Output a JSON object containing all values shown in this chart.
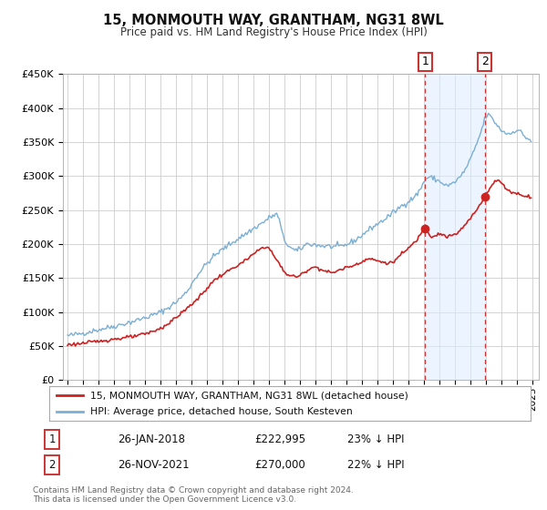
{
  "title": "15, MONMOUTH WAY, GRANTHAM, NG31 8WL",
  "subtitle": "Price paid vs. HM Land Registry's House Price Index (HPI)",
  "background_color": "#ffffff",
  "grid_color": "#cccccc",
  "hpi_color": "#7bafd4",
  "price_color": "#cc2222",
  "vline_color": "#cc3333",
  "shade_color": "#ddeeff",
  "ylim": [
    0,
    450000
  ],
  "yticks": [
    0,
    50000,
    100000,
    150000,
    200000,
    250000,
    300000,
    350000,
    400000,
    450000
  ],
  "ytick_labels": [
    "£0",
    "£50K",
    "£100K",
    "£150K",
    "£200K",
    "£250K",
    "£300K",
    "£350K",
    "£400K",
    "£450K"
  ],
  "xlim_start": 1994.7,
  "xlim_end": 2025.4,
  "xticks": [
    1995,
    1996,
    1997,
    1998,
    1999,
    2000,
    2001,
    2002,
    2003,
    2004,
    2005,
    2006,
    2007,
    2008,
    2009,
    2010,
    2011,
    2012,
    2013,
    2014,
    2015,
    2016,
    2017,
    2018,
    2019,
    2020,
    2021,
    2022,
    2023,
    2024,
    2025
  ],
  "sale1_x": 2018.07,
  "sale1_y": 222995,
  "sale1_label": "1",
  "sale1_date": "26-JAN-2018",
  "sale1_price": "£222,995",
  "sale1_hpi": "23% ↓ HPI",
  "sale2_x": 2021.91,
  "sale2_y": 270000,
  "sale2_label": "2",
  "sale2_date": "26-NOV-2021",
  "sale2_price": "£270,000",
  "sale2_hpi": "22% ↓ HPI",
  "legend_label1": "15, MONMOUTH WAY, GRANTHAM, NG31 8WL (detached house)",
  "legend_label2": "HPI: Average price, detached house, South Kesteven",
  "footer1": "Contains HM Land Registry data © Crown copyright and database right 2024.",
  "footer2": "This data is licensed under the Open Government Licence v3.0.",
  "hpi_anchors_x": [
    1995.0,
    1996.0,
    1997.0,
    1998.0,
    1999.5,
    2001.0,
    2002.5,
    2003.5,
    2004.5,
    2005.5,
    2006.5,
    2007.5,
    2008.5,
    2009.0,
    2009.8,
    2010.5,
    2011.5,
    2012.5,
    2013.5,
    2014.5,
    2015.5,
    2016.5,
    2017.5,
    2018.3,
    2019.0,
    2019.5,
    2020.3,
    2021.0,
    2021.6,
    2022.1,
    2022.6,
    2023.0,
    2023.5,
    2024.0,
    2024.5,
    2024.9
  ],
  "hpi_anchors_y": [
    65000,
    69000,
    74000,
    79000,
    88000,
    100000,
    125000,
    158000,
    183000,
    200000,
    215000,
    230000,
    243000,
    205000,
    190000,
    200000,
    197000,
    196000,
    205000,
    222000,
    237000,
    255000,
    272000,
    298000,
    292000,
    286000,
    298000,
    325000,
    360000,
    390000,
    378000,
    367000,
    362000,
    368000,
    358000,
    352000
  ],
  "price_anchors_x": [
    1995.0,
    1996.0,
    1997.0,
    1998.0,
    1999.5,
    2001.0,
    2002.0,
    2003.5,
    2004.5,
    2005.5,
    2006.5,
    2007.0,
    2007.8,
    2008.5,
    2009.2,
    2009.8,
    2010.5,
    2011.0,
    2011.5,
    2012.0,
    2012.8,
    2013.5,
    2014.5,
    2015.0,
    2015.8,
    2016.5,
    2017.0,
    2017.5,
    2018.07,
    2018.5,
    2019.0,
    2019.5,
    2020.0,
    2020.5,
    2021.0,
    2021.5,
    2021.91,
    2022.3,
    2022.8,
    2023.0,
    2023.5,
    2024.0,
    2024.5,
    2024.9
  ],
  "price_anchors_y": [
    52000,
    54000,
    57000,
    60000,
    65000,
    76000,
    92000,
    122000,
    147000,
    162000,
    176000,
    185000,
    196000,
    176000,
    155000,
    152000,
    162000,
    166000,
    161000,
    158000,
    164000,
    169000,
    178000,
    175000,
    172000,
    184000,
    194000,
    205000,
    222995,
    211000,
    215000,
    211000,
    214000,
    224000,
    238000,
    254000,
    270000,
    284000,
    294000,
    289000,
    278000,
    274000,
    271000,
    269000
  ]
}
